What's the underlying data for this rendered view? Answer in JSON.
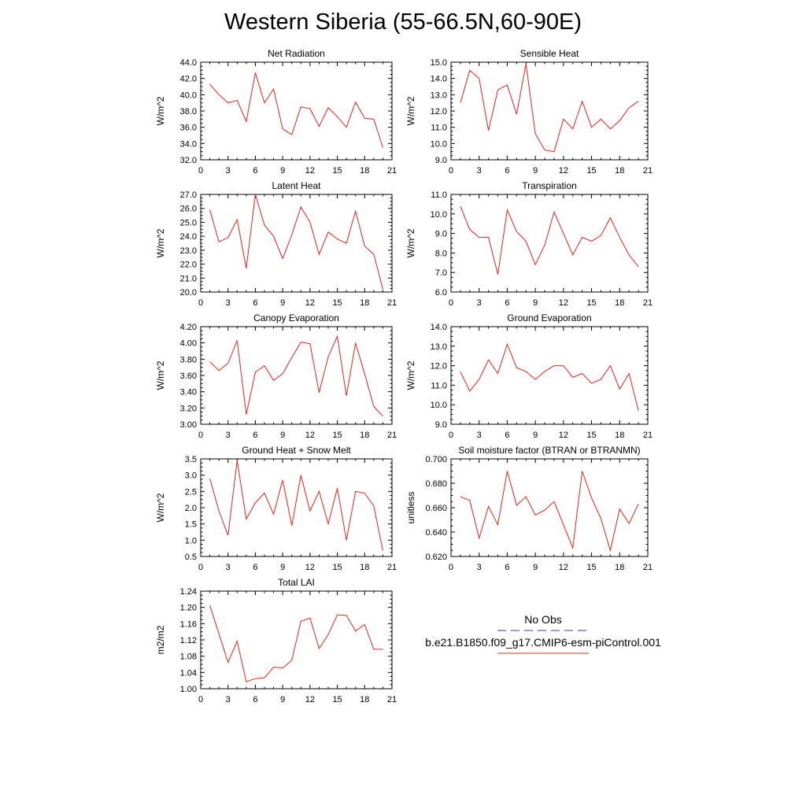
{
  "page": {
    "title": "Western Siberia (55-66.5N,60-90E)"
  },
  "legend": {
    "items": [
      {
        "label": "No Obs",
        "color": "#3a3a8c",
        "dash": true
      },
      {
        "label": "b.e21.B1850.f09_g17.CMIP6-esm-piControl.001",
        "color": "#e8221b",
        "dash": false
      }
    ]
  },
  "chart_data": [
    {
      "type": "line",
      "title": "Net Radiation",
      "ylabel": "W/m^2",
      "xlim": [
        0,
        21
      ],
      "ylim": [
        32,
        44
      ],
      "xticks": [
        0,
        3,
        6,
        9,
        12,
        15,
        18,
        21
      ],
      "yticks": [
        "32.0",
        "34.0",
        "36.0",
        "38.0",
        "40.0",
        "42.0",
        "44.0"
      ],
      "x": [
        1,
        2,
        3,
        4,
        5,
        6,
        7,
        8,
        9,
        10,
        11,
        12,
        13,
        14,
        15,
        16,
        17,
        18,
        19,
        20
      ],
      "series": [
        {
          "values": [
            41.3,
            40.0,
            39.0,
            39.3,
            36.7,
            42.7,
            39.0,
            40.7,
            35.8,
            35.1,
            38.5,
            38.3,
            36.1,
            38.4,
            37.3,
            36.0,
            39.1,
            37.1,
            37.0,
            33.5
          ]
        }
      ]
    },
    {
      "type": "line",
      "title": "Sensible Heat",
      "ylabel": "W/m^2",
      "xlim": [
        0,
        21
      ],
      "ylim": [
        9,
        15
      ],
      "xticks": [
        0,
        3,
        6,
        9,
        12,
        15,
        18,
        21
      ],
      "yticks": [
        "9.0",
        "10.0",
        "11.0",
        "12.0",
        "13.0",
        "14.0",
        "15.0"
      ],
      "x": [
        1,
        2,
        3,
        4,
        5,
        6,
        7,
        8,
        9,
        10,
        11,
        12,
        13,
        14,
        15,
        16,
        17,
        18,
        19,
        20
      ],
      "series": [
        {
          "values": [
            12.5,
            14.5,
            14.0,
            10.8,
            13.3,
            13.6,
            11.8,
            14.9,
            10.6,
            9.6,
            9.5,
            11.5,
            10.9,
            12.6,
            11.0,
            11.5,
            10.9,
            11.4,
            12.2,
            12.6
          ]
        }
      ]
    },
    {
      "type": "line",
      "title": "Latent Heat",
      "ylabel": "W/m^2",
      "xlim": [
        0,
        21
      ],
      "ylim": [
        20,
        27
      ],
      "xticks": [
        0,
        3,
        6,
        9,
        12,
        15,
        18,
        21
      ],
      "yticks": [
        "20.0",
        "21.0",
        "22.0",
        "23.0",
        "24.0",
        "25.0",
        "26.0",
        "27.0"
      ],
      "x": [
        1,
        2,
        3,
        4,
        5,
        6,
        7,
        8,
        9,
        10,
        11,
        12,
        13,
        14,
        15,
        16,
        17,
        18,
        19,
        20
      ],
      "series": [
        {
          "values": [
            25.9,
            23.6,
            23.9,
            25.2,
            21.7,
            27.0,
            24.8,
            24.0,
            22.4,
            24.1,
            26.1,
            25.0,
            22.7,
            24.3,
            23.8,
            23.5,
            25.8,
            23.3,
            22.7,
            20.2
          ]
        }
      ]
    },
    {
      "type": "line",
      "title": "Transpiration",
      "ylabel": "W/m^2",
      "xlim": [
        0,
        21
      ],
      "ylim": [
        6,
        11
      ],
      "xticks": [
        0,
        3,
        6,
        9,
        12,
        15,
        18,
        21
      ],
      "yticks": [
        "6.0",
        "7.0",
        "8.0",
        "9.0",
        "10.0",
        "11.0"
      ],
      "x": [
        1,
        2,
        3,
        4,
        5,
        6,
        7,
        8,
        9,
        10,
        11,
        12,
        13,
        14,
        15,
        16,
        17,
        18,
        19,
        20
      ],
      "series": [
        {
          "values": [
            10.4,
            9.2,
            8.8,
            8.8,
            6.9,
            10.2,
            9.1,
            8.6,
            7.4,
            8.4,
            10.1,
            9.0,
            7.9,
            8.8,
            8.6,
            8.9,
            9.8,
            8.8,
            7.9,
            7.3
          ]
        }
      ]
    },
    {
      "type": "line",
      "title": "Canopy Evaporation",
      "ylabel": "W/m^2",
      "xlim": [
        0,
        21
      ],
      "ylim": [
        3.0,
        4.2
      ],
      "xticks": [
        0,
        3,
        6,
        9,
        12,
        15,
        18,
        21
      ],
      "yticks": [
        "3.00",
        "3.20",
        "3.40",
        "3.60",
        "3.80",
        "4.00",
        "4.20"
      ],
      "x": [
        1,
        2,
        3,
        4,
        5,
        6,
        7,
        8,
        9,
        10,
        11,
        12,
        13,
        14,
        15,
        16,
        17,
        18,
        19,
        20
      ],
      "series": [
        {
          "values": [
            3.77,
            3.66,
            3.75,
            4.03,
            3.12,
            3.64,
            3.72,
            3.54,
            3.62,
            3.82,
            4.01,
            3.99,
            3.39,
            3.83,
            4.08,
            3.35,
            4.0,
            3.62,
            3.22,
            3.1
          ]
        }
      ]
    },
    {
      "type": "line",
      "title": "Ground Evaporation",
      "ylabel": "W/m^2",
      "xlim": [
        0,
        21
      ],
      "ylim": [
        9,
        14
      ],
      "xticks": [
        0,
        3,
        6,
        9,
        12,
        15,
        18,
        21
      ],
      "yticks": [
        "9.0",
        "10.0",
        "11.0",
        "12.0",
        "13.0",
        "14.0"
      ],
      "x": [
        1,
        2,
        3,
        4,
        5,
        6,
        7,
        8,
        9,
        10,
        11,
        12,
        13,
        14,
        15,
        16,
        17,
        18,
        19,
        20
      ],
      "series": [
        {
          "values": [
            11.7,
            10.7,
            11.3,
            12.3,
            11.6,
            13.1,
            11.9,
            11.7,
            11.3,
            11.7,
            12.0,
            12.0,
            11.4,
            11.6,
            11.1,
            11.3,
            12.0,
            10.8,
            11.6,
            9.7
          ]
        }
      ]
    },
    {
      "type": "line",
      "title": "Ground Heat + Snow Melt",
      "ylabel": "W/m^2",
      "xlim": [
        0,
        21
      ],
      "ylim": [
        0.5,
        3.5
      ],
      "xticks": [
        0,
        3,
        6,
        9,
        12,
        15,
        18,
        21
      ],
      "yticks": [
        "0.5",
        "1.0",
        "1.5",
        "2.0",
        "2.5",
        "3.0",
        "3.5"
      ],
      "x": [
        1,
        2,
        3,
        4,
        5,
        6,
        7,
        8,
        9,
        10,
        11,
        12,
        13,
        14,
        15,
        16,
        17,
        18,
        19,
        20
      ],
      "series": [
        {
          "values": [
            2.9,
            1.9,
            1.15,
            3.45,
            1.65,
            2.15,
            2.45,
            1.8,
            2.85,
            1.45,
            3.0,
            1.9,
            2.5,
            1.5,
            2.6,
            1.0,
            2.5,
            2.45,
            2.05,
            0.68
          ]
        }
      ]
    },
    {
      "type": "line",
      "title": "Soil moisture factor (BTRAN or BTRANMN)",
      "ylabel": "unitless",
      "xlim": [
        0,
        21
      ],
      "ylim": [
        0.62,
        0.7
      ],
      "xticks": [
        0,
        3,
        6,
        9,
        12,
        15,
        18,
        21
      ],
      "yticks": [
        "0.620",
        "0.640",
        "0.660",
        "0.680",
        "0.700"
      ],
      "x": [
        1,
        2,
        3,
        4,
        5,
        6,
        7,
        8,
        9,
        10,
        11,
        12,
        13,
        14,
        15,
        16,
        17,
        18,
        19,
        20
      ],
      "series": [
        {
          "values": [
            0.669,
            0.666,
            0.635,
            0.661,
            0.646,
            0.69,
            0.662,
            0.669,
            0.654,
            0.658,
            0.665,
            0.646,
            0.627,
            0.69,
            0.668,
            0.651,
            0.625,
            0.659,
            0.647,
            0.663
          ]
        }
      ]
    },
    {
      "type": "line",
      "title": "Total LAI",
      "ylabel": "m2/m2",
      "xlim": [
        0,
        21
      ],
      "ylim": [
        1.0,
        1.24
      ],
      "xticks": [
        0,
        3,
        6,
        9,
        12,
        15,
        18,
        21
      ],
      "yticks": [
        "1.00",
        "1.04",
        "1.08",
        "1.12",
        "1.16",
        "1.20",
        "1.24"
      ],
      "x": [
        1,
        2,
        3,
        4,
        5,
        6,
        7,
        8,
        9,
        10,
        11,
        12,
        13,
        14,
        15,
        16,
        17,
        18,
        19,
        20
      ],
      "series": [
        {
          "values": [
            1.205,
            1.135,
            1.065,
            1.117,
            1.017,
            1.025,
            1.027,
            1.053,
            1.051,
            1.07,
            1.166,
            1.174,
            1.099,
            1.133,
            1.182,
            1.18,
            1.142,
            1.158,
            1.097,
            1.097
          ]
        }
      ]
    }
  ]
}
